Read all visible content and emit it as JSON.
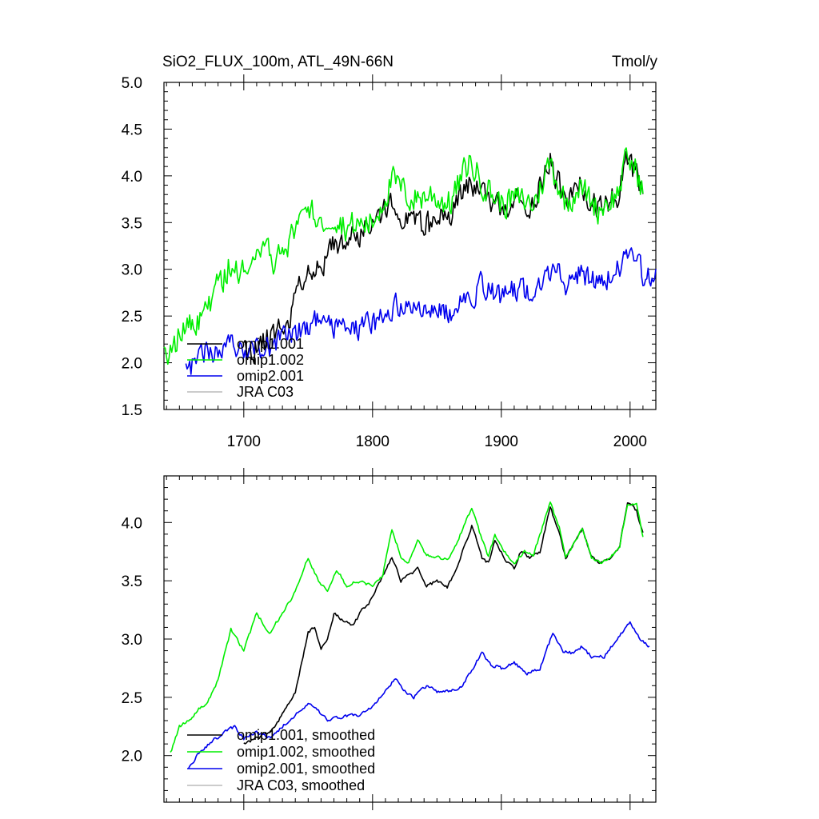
{
  "chart_data": [
    {
      "type": "line",
      "title": "SiO2_FLUX_100m, ATL_49N-66N",
      "units_label": "Tmol/y",
      "xlim": [
        1638,
        2020
      ],
      "ylim": [
        1.5,
        5.0
      ],
      "xticks": [
        1700,
        1800,
        1900,
        2000
      ],
      "xtick_labels": [
        "1700",
        "1800",
        "1900",
        "2000"
      ],
      "yticks": [
        1.5,
        2.0,
        2.5,
        3.0,
        3.5,
        4.0,
        4.5,
        5.0
      ],
      "ytick_labels": [
        "1.5",
        "2.0",
        "2.5",
        "3.0",
        "3.5",
        "4.0",
        "4.5",
        "5.0"
      ],
      "legend_position": "lower-left",
      "series": [
        {
          "name": "omip1.001",
          "color": "#000000",
          "x_start": 1700,
          "x_end": 2010,
          "anchors": [
            [
              1700,
              2.1
            ],
            [
              1720,
              2.25
            ],
            [
              1735,
              2.5
            ],
            [
              1750,
              3.05
            ],
            [
              1760,
              2.95
            ],
            [
              1770,
              3.25
            ],
            [
              1780,
              3.3
            ],
            [
              1795,
              3.45
            ],
            [
              1815,
              3.7
            ],
            [
              1830,
              3.55
            ],
            [
              1845,
              3.45
            ],
            [
              1860,
              3.6
            ],
            [
              1875,
              3.95
            ],
            [
              1890,
              3.75
            ],
            [
              1900,
              3.65
            ],
            [
              1910,
              3.75
            ],
            [
              1925,
              3.7
            ],
            [
              1938,
              4.15
            ],
            [
              1950,
              3.7
            ],
            [
              1960,
              3.9
            ],
            [
              1975,
              3.65
            ],
            [
              1990,
              3.8
            ],
            [
              1998,
              4.15
            ],
            [
              2005,
              4.0
            ],
            [
              2010,
              3.85
            ]
          ],
          "noise": 0.2,
          "seed": 11
        },
        {
          "name": "omip1.002",
          "color": "#00ee00",
          "x_start": 1638,
          "x_end": 2010,
          "anchors": [
            [
              1638,
              2.05
            ],
            [
              1650,
              2.3
            ],
            [
              1665,
              2.45
            ],
            [
              1680,
              2.8
            ],
            [
              1690,
              3.1
            ],
            [
              1700,
              2.95
            ],
            [
              1710,
              3.2
            ],
            [
              1725,
              3.1
            ],
            [
              1740,
              3.4
            ],
            [
              1750,
              3.7
            ],
            [
              1760,
              3.5
            ],
            [
              1770,
              3.6
            ],
            [
              1780,
              3.45
            ],
            [
              1800,
              3.5
            ],
            [
              1815,
              3.95
            ],
            [
              1830,
              3.75
            ],
            [
              1845,
              3.8
            ],
            [
              1860,
              3.7
            ],
            [
              1875,
              4.15
            ],
            [
              1890,
              3.85
            ],
            [
              1900,
              3.7
            ],
            [
              1910,
              3.75
            ],
            [
              1925,
              3.7
            ],
            [
              1938,
              4.15
            ],
            [
              1950,
              3.7
            ],
            [
              1960,
              3.9
            ],
            [
              1975,
              3.65
            ],
            [
              1990,
              3.8
            ],
            [
              1998,
              4.2
            ],
            [
              2005,
              4.05
            ],
            [
              2010,
              3.85
            ]
          ],
          "noise": 0.22,
          "seed": 22
        },
        {
          "name": "omip2.001",
          "color": "#0000ee",
          "x_start": 1655,
          "x_end": 2020,
          "anchors": [
            [
              1655,
              1.9
            ],
            [
              1670,
              2.1
            ],
            [
              1690,
              2.2
            ],
            [
              1710,
              2.15
            ],
            [
              1725,
              2.2
            ],
            [
              1740,
              2.3
            ],
            [
              1755,
              2.45
            ],
            [
              1770,
              2.35
            ],
            [
              1790,
              2.35
            ],
            [
              1805,
              2.45
            ],
            [
              1818,
              2.65
            ],
            [
              1830,
              2.55
            ],
            [
              1845,
              2.55
            ],
            [
              1860,
              2.55
            ],
            [
              1875,
              2.65
            ],
            [
              1885,
              2.85
            ],
            [
              1900,
              2.7
            ],
            [
              1915,
              2.8
            ],
            [
              1925,
              2.7
            ],
            [
              1940,
              3.0
            ],
            [
              1950,
              2.85
            ],
            [
              1960,
              2.95
            ],
            [
              1975,
              2.85
            ],
            [
              1990,
              3.0
            ],
            [
              2000,
              3.15
            ],
            [
              2010,
              2.95
            ],
            [
              2020,
              2.9
            ]
          ],
          "noise": 0.18,
          "seed": 33
        },
        {
          "name": "JRA C03",
          "color": "#bbbbbb",
          "x_start": 0,
          "x_end": 0,
          "anchors": [],
          "noise": 0,
          "seed": 0
        }
      ]
    },
    {
      "type": "line",
      "title": "",
      "xlim": [
        1638,
        2020
      ],
      "ylim": [
        1.6,
        4.4
      ],
      "xticks": [
        1700,
        1800,
        1900,
        2000
      ],
      "yticks": [
        2.0,
        2.5,
        3.0,
        3.5,
        4.0
      ],
      "ytick_labels": [
        "2.0",
        "2.5",
        "3.0",
        "3.5",
        "4.0"
      ],
      "legend_position": "lower-left",
      "series": [
        {
          "name": "omip1.001, smoothed",
          "color": "#000000",
          "x_start": 1700,
          "x_end": 2010,
          "anchors": [
            [
              1700,
              2.1
            ],
            [
              1710,
              2.15
            ],
            [
              1720,
              2.2
            ],
            [
              1730,
              2.35
            ],
            [
              1740,
              2.55
            ],
            [
              1750,
              3.05
            ],
            [
              1755,
              3.1
            ],
            [
              1760,
              2.9
            ],
            [
              1765,
              3.0
            ],
            [
              1770,
              3.22
            ],
            [
              1778,
              3.15
            ],
            [
              1785,
              3.12
            ],
            [
              1792,
              3.25
            ],
            [
              1800,
              3.35
            ],
            [
              1808,
              3.55
            ],
            [
              1815,
              3.7
            ],
            [
              1822,
              3.5
            ],
            [
              1828,
              3.55
            ],
            [
              1835,
              3.6
            ],
            [
              1842,
              3.45
            ],
            [
              1850,
              3.5
            ],
            [
              1858,
              3.45
            ],
            [
              1865,
              3.6
            ],
            [
              1870,
              3.75
            ],
            [
              1877,
              3.97
            ],
            [
              1885,
              3.7
            ],
            [
              1890,
              3.65
            ],
            [
              1895,
              3.85
            ],
            [
              1902,
              3.7
            ],
            [
              1910,
              3.6
            ],
            [
              1915,
              3.75
            ],
            [
              1922,
              3.7
            ],
            [
              1930,
              3.75
            ],
            [
              1938,
              4.13
            ],
            [
              1945,
              3.9
            ],
            [
              1950,
              3.7
            ],
            [
              1958,
              3.85
            ],
            [
              1963,
              3.95
            ],
            [
              1970,
              3.7
            ],
            [
              1978,
              3.65
            ],
            [
              1985,
              3.7
            ],
            [
              1992,
              3.8
            ],
            [
              1998,
              4.18
            ],
            [
              2005,
              4.1
            ],
            [
              2010,
              3.9
            ]
          ],
          "noise": 0.02,
          "seed": 44
        },
        {
          "name": "omip1.002, smoothed",
          "color": "#00ee00",
          "x_start": 1643,
          "x_end": 2010,
          "anchors": [
            [
              1643,
              2.02
            ],
            [
              1650,
              2.25
            ],
            [
              1658,
              2.3
            ],
            [
              1665,
              2.4
            ],
            [
              1672,
              2.45
            ],
            [
              1680,
              2.65
            ],
            [
              1690,
              3.08
            ],
            [
              1700,
              2.9
            ],
            [
              1710,
              3.22
            ],
            [
              1720,
              3.05
            ],
            [
              1730,
              3.22
            ],
            [
              1740,
              3.4
            ],
            [
              1750,
              3.7
            ],
            [
              1758,
              3.5
            ],
            [
              1765,
              3.42
            ],
            [
              1772,
              3.6
            ],
            [
              1780,
              3.45
            ],
            [
              1788,
              3.5
            ],
            [
              1800,
              3.45
            ],
            [
              1808,
              3.55
            ],
            [
              1815,
              3.95
            ],
            [
              1822,
              3.7
            ],
            [
              1828,
              3.65
            ],
            [
              1835,
              3.85
            ],
            [
              1842,
              3.72
            ],
            [
              1850,
              3.7
            ],
            [
              1858,
              3.68
            ],
            [
              1865,
              3.8
            ],
            [
              1870,
              3.95
            ],
            [
              1877,
              4.13
            ],
            [
              1885,
              3.85
            ],
            [
              1890,
              3.7
            ],
            [
              1895,
              3.9
            ],
            [
              1902,
              3.75
            ],
            [
              1910,
              3.65
            ],
            [
              1918,
              3.75
            ],
            [
              1925,
              3.72
            ],
            [
              1938,
              4.17
            ],
            [
              1945,
              3.95
            ],
            [
              1950,
              3.7
            ],
            [
              1958,
              3.85
            ],
            [
              1963,
              3.95
            ],
            [
              1970,
              3.7
            ],
            [
              1978,
              3.65
            ],
            [
              1985,
              3.7
            ],
            [
              1992,
              3.8
            ],
            [
              1998,
              4.15
            ],
            [
              2005,
              4.15
            ],
            [
              2010,
              3.88
            ]
          ],
          "noise": 0.02,
          "seed": 55
        },
        {
          "name": "omip2.001, smoothed",
          "color": "#0000ee",
          "x_start": 1657,
          "x_end": 2015,
          "anchors": [
            [
              1657,
              1.88
            ],
            [
              1665,
              2.02
            ],
            [
              1675,
              2.12
            ],
            [
              1685,
              2.2
            ],
            [
              1693,
              2.25
            ],
            [
              1700,
              2.15
            ],
            [
              1710,
              2.2
            ],
            [
              1720,
              2.15
            ],
            [
              1730,
              2.25
            ],
            [
              1740,
              2.35
            ],
            [
              1750,
              2.44
            ],
            [
              1758,
              2.38
            ],
            [
              1765,
              2.3
            ],
            [
              1775,
              2.33
            ],
            [
              1790,
              2.35
            ],
            [
              1800,
              2.42
            ],
            [
              1810,
              2.55
            ],
            [
              1818,
              2.67
            ],
            [
              1825,
              2.55
            ],
            [
              1832,
              2.5
            ],
            [
              1842,
              2.6
            ],
            [
              1850,
              2.55
            ],
            [
              1860,
              2.55
            ],
            [
              1870,
              2.6
            ],
            [
              1878,
              2.75
            ],
            [
              1885,
              2.88
            ],
            [
              1892,
              2.78
            ],
            [
              1900,
              2.75
            ],
            [
              1910,
              2.8
            ],
            [
              1920,
              2.7
            ],
            [
              1930,
              2.75
            ],
            [
              1940,
              3.05
            ],
            [
              1948,
              2.9
            ],
            [
              1955,
              2.88
            ],
            [
              1962,
              2.93
            ],
            [
              1970,
              2.85
            ],
            [
              1980,
              2.85
            ],
            [
              1990,
              3.0
            ],
            [
              2000,
              3.15
            ],
            [
              2008,
              3.0
            ],
            [
              2015,
              2.93
            ]
          ],
          "noise": 0.02,
          "seed": 66
        },
        {
          "name": "JRA C03, smoothed",
          "color": "#bbbbbb",
          "x_start": 0,
          "x_end": 0,
          "anchors": [],
          "noise": 0,
          "seed": 0
        }
      ]
    }
  ]
}
